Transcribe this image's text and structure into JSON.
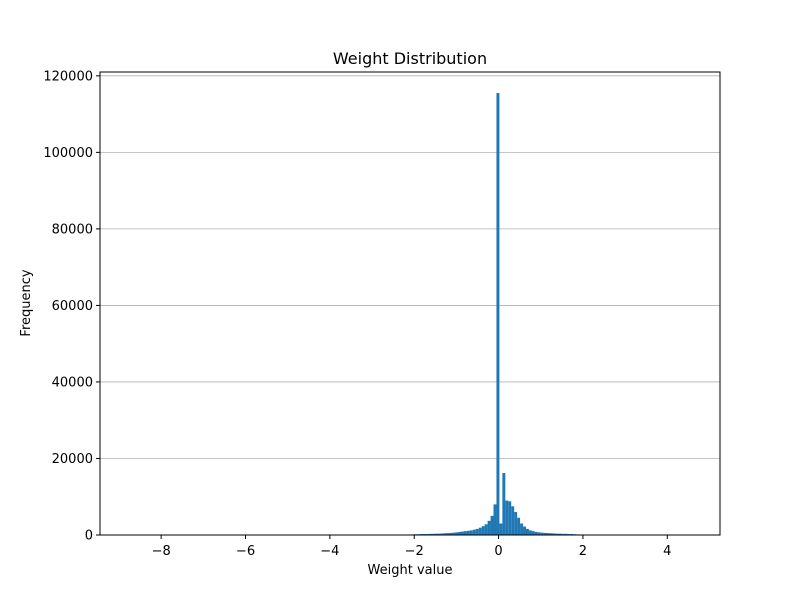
{
  "chart_data": {
    "type": "bar",
    "title": "Weight Distribution",
    "xlabel": "Weight value",
    "ylabel": "Frequency",
    "xlim": [
      -9.45,
      5.25
    ],
    "ylim": [
      0,
      121000
    ],
    "x_ticks": [
      -8,
      -6,
      -4,
      -2,
      0,
      2,
      4
    ],
    "x_tick_labels": [
      "−8",
      "−6",
      "−4",
      "−2",
      "0",
      "2",
      "4"
    ],
    "y_ticks": [
      0,
      20000,
      40000,
      60000,
      80000,
      100000,
      120000
    ],
    "y_tick_labels": [
      "0",
      "20000",
      "40000",
      "60000",
      "80000",
      "100000",
      "120000"
    ],
    "grid": "y",
    "bar_color": "#1f77b4",
    "bin_width": 0.07,
    "bins": {
      "x": [
        -8.77,
        -8.7,
        -8.63,
        -2.08,
        -2.01,
        -1.94,
        -1.87,
        -1.8,
        -1.73,
        -1.66,
        -1.59,
        -1.52,
        -1.45,
        -1.38,
        -1.31,
        -1.24,
        -1.17,
        -1.1,
        -1.03,
        -0.96,
        -0.89,
        -0.82,
        -0.75,
        -0.68,
        -0.61,
        -0.54,
        -0.47,
        -0.4,
        -0.33,
        -0.26,
        -0.19,
        -0.12,
        -0.05,
        0.02,
        0.09,
        0.16,
        0.23,
        0.3,
        0.37,
        0.44,
        0.51,
        0.58,
        0.65,
        0.72,
        0.79,
        0.86,
        0.93,
        1.0,
        1.07,
        1.14,
        1.21,
        1.28,
        1.35,
        1.42,
        1.49,
        1.56,
        1.63,
        1.7,
        1.77,
        1.84,
        1.91,
        4.6,
        4.67
      ],
      "counts": [
        50,
        50,
        50,
        150,
        200,
        200,
        250,
        250,
        250,
        300,
        300,
        350,
        350,
        400,
        450,
        500,
        550,
        600,
        700,
        800,
        900,
        1000,
        1100,
        1200,
        1400,
        1600,
        1900,
        2300,
        2800,
        3700,
        5000,
        8000,
        115500,
        3000,
        16200,
        9000,
        8800,
        7500,
        6000,
        4500,
        3000,
        2200,
        1600,
        1200,
        1000,
        800,
        700,
        600,
        550,
        500,
        450,
        400,
        350,
        350,
        300,
        300,
        250,
        250,
        200,
        150,
        100,
        50,
        50
      ]
    }
  }
}
